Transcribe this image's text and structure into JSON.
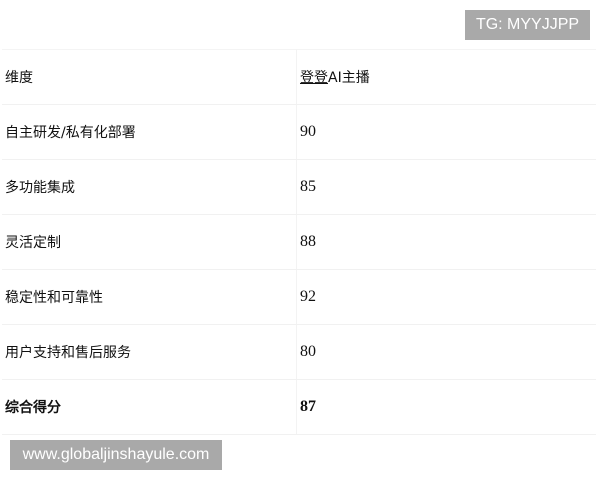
{
  "watermarks": {
    "top": "TG: MYYJJPP",
    "bottom": "www.globaljinshayule.com"
  },
  "table": {
    "header": {
      "dimension": "维度",
      "product_link": "登登",
      "product_rest": "AI主播"
    },
    "rows": [
      {
        "label": "自主研发/私有化部署",
        "score": "90"
      },
      {
        "label": "多功能集成",
        "score": "85"
      },
      {
        "label": "灵活定制",
        "score": "88"
      },
      {
        "label": "稳定性和可靠性",
        "score": "92"
      },
      {
        "label": "用户支持和售后服务",
        "score": "80"
      }
    ],
    "total": {
      "label": "综合得分",
      "score": "87"
    }
  },
  "colors": {
    "watermark_bg": "#a9a9a9"
  }
}
